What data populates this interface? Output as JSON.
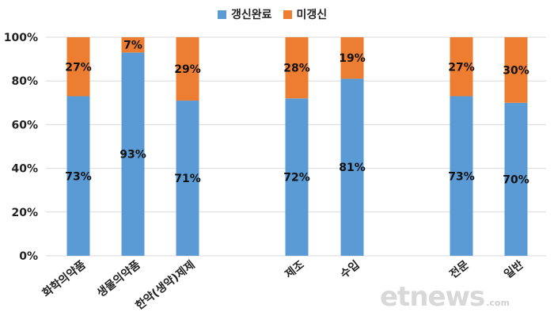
{
  "chart_data": {
    "type": "bar",
    "stacked": true,
    "categories": [
      "화학의약품",
      "생물의약품",
      "한약(생약)제제",
      "제조",
      "수입",
      "전문",
      "일반"
    ],
    "series": [
      {
        "name": "갱신완료",
        "values": [
          73,
          93,
          71,
          72,
          81,
          73,
          70
        ],
        "labels": [
          "73%",
          "93%",
          "71%",
          "72%",
          "81%",
          "73%",
          "70%"
        ],
        "color": "#5b9bd5"
      },
      {
        "name": "미갱신",
        "values": [
          27,
          7,
          29,
          28,
          19,
          27,
          30
        ],
        "labels": [
          "27%",
          "7%",
          "29%",
          "28%",
          "19%",
          "27%",
          "30%"
        ],
        "color": "#ed7d31"
      }
    ],
    "yticks": [
      "0%",
      "20%",
      "40%",
      "60%",
      "80%",
      "100%"
    ],
    "ylim": [
      0,
      100
    ],
    "grid": true,
    "legend_position": "top"
  },
  "watermark": {
    "text": "etnews",
    "sub": ".com"
  }
}
